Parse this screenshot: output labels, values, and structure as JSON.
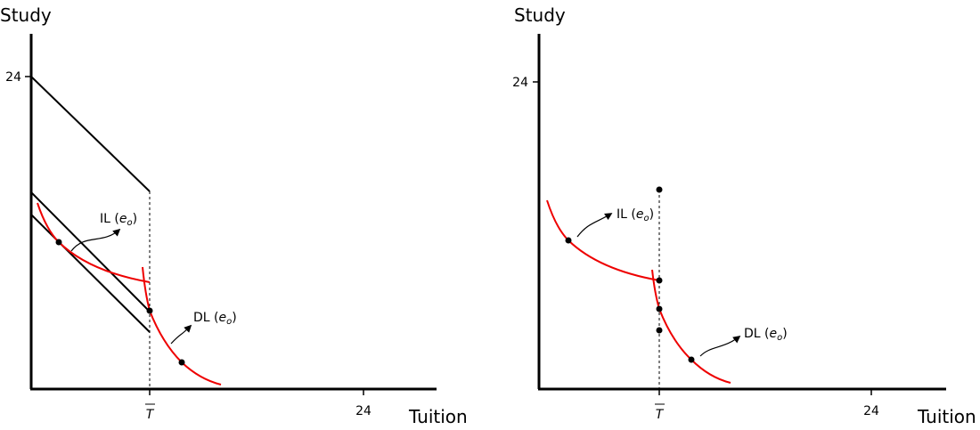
{
  "panels": [
    {
      "y_axis_label": "Study",
      "x_axis_label": "Tuition",
      "y_tick_label": "24",
      "x_tick_label": "24",
      "threshold_label": "T",
      "curve_labels": [
        {
          "prefix": "IL (",
          "italic": "e",
          "subscript": "o",
          "suffix": ")"
        },
        {
          "prefix": "DL (",
          "italic": "e",
          "subscript": "o",
          "suffix": ")"
        }
      ]
    },
    {
      "y_axis_label": "Study",
      "x_axis_label": "Tuition",
      "y_tick_label": "24",
      "x_tick_label": "24",
      "threshold_label": "T",
      "curve_labels": [
        {
          "prefix": "IL (",
          "italic": "e",
          "subscript": "o",
          "suffix": ")"
        },
        {
          "prefix": "DL (",
          "italic": "e",
          "subscript": "o",
          "suffix": ")"
        }
      ]
    }
  ]
}
